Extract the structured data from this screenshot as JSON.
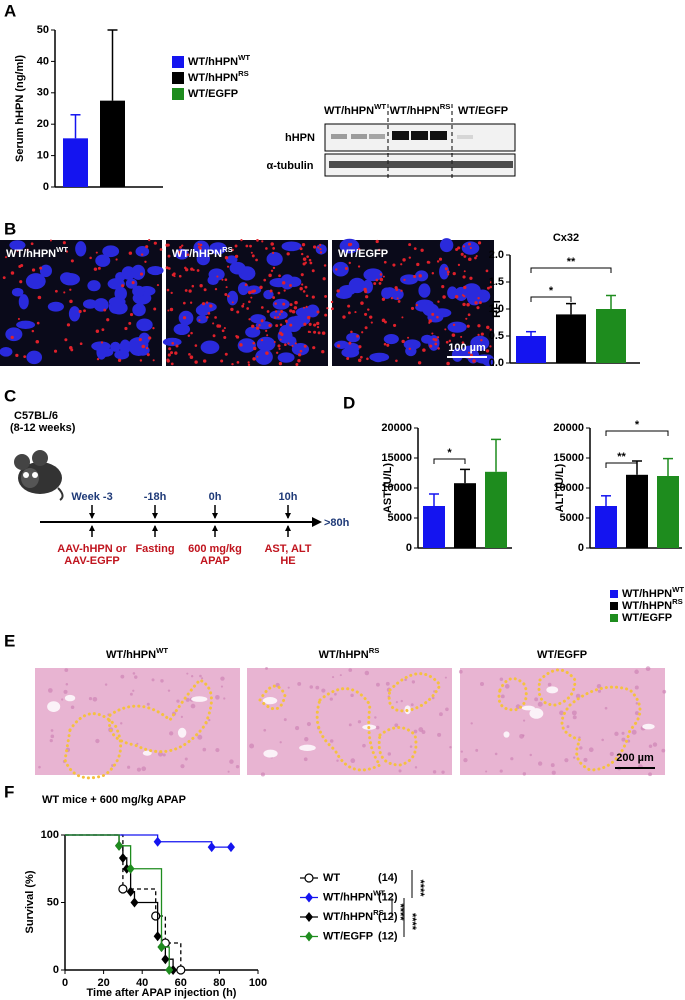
{
  "panels": [
    "A",
    "B",
    "C",
    "D",
    "E",
    "F"
  ],
  "blot": {
    "columns": [
      {
        "name": "WT/hHPN",
        "name_sup": "WT"
      },
      {
        "name": "WT/hHPN",
        "name_sup": "RS"
      },
      {
        "name": "WT/EGFP"
      }
    ],
    "rows": [
      "hHPN",
      "α-tubulin"
    ]
  },
  "microscopy": {
    "labels": [
      {
        "name": "WT/hHPN",
        "name_sup": "WT"
      },
      {
        "name": "WT/hHPN",
        "name_sup": "RS"
      },
      {
        "name": "WT/EGFP"
      }
    ],
    "scale_bar": "100 µm"
  },
  "timeline": {
    "strain": "C57BL/6",
    "age": "(8-12 weeks)",
    "points": [
      {
        "time": "Week -3",
        "event": [
          "AAV-hHPN or",
          "AAV-EGFP"
        ]
      },
      {
        "time": "-18h",
        "event": [
          "Fasting"
        ]
      },
      {
        "time": "0h",
        "event": [
          "600 mg/kg",
          "APAP"
        ]
      },
      {
        "time": "10h",
        "event": [
          "AST, ALT",
          "HE"
        ]
      }
    ],
    "end": ">80h"
  },
  "histology": {
    "labels": [
      {
        "name": "WT/hHPN",
        "name_sup": "WT"
      },
      {
        "name": "WT/hHPN",
        "name_sup": "RS"
      },
      {
        "name": "WT/EGFP"
      }
    ],
    "scale_bar": "200 µm"
  },
  "chart_data": [
    {
      "type": "bar",
      "ylabel": "Serum hHPN (ng/ml)",
      "ylim": [
        0,
        50
      ],
      "yticks": [
        0,
        10,
        20,
        30,
        40,
        50
      ],
      "values": [
        15.5,
        27.5
      ],
      "errors": [
        7.5,
        22.5
      ],
      "legend": [
        {
          "name": "WT/hHPN",
          "name_sup": "WT",
          "color": "#1414f0"
        },
        {
          "name": "WT/hHPN",
          "name_sup": "RS",
          "color": "#000000"
        },
        {
          "name": "WT/EGFP",
          "color": "#1e8c1e"
        }
      ]
    },
    {
      "type": "bar",
      "title": "Cx32",
      "ylabel": "RFI",
      "ylim": [
        0,
        2
      ],
      "yticks": [
        {
          "value": 0,
          "label": "0.0"
        },
        0.5,
        {
          "value": 1,
          "label": "1.0"
        },
        1.5,
        {
          "value": 2,
          "label": "2.0"
        }
      ],
      "values": [
        0.5,
        0.9,
        1.0
      ],
      "errors": [
        0.08,
        0.2,
        0.25
      ],
      "colors": [
        "#1414f0",
        "#000000",
        "#1e8c1e"
      ],
      "annotations": [
        "*",
        "**"
      ]
    },
    {
      "type": "bar",
      "ylim": [
        0,
        20000
      ],
      "yticks": [
        0,
        5000,
        10000,
        15000,
        20000
      ],
      "panels": [
        {
          "ylabel": "AST (U/L)",
          "values": [
            7000,
            10800,
            12700
          ],
          "errors": [
            2000,
            2300,
            5400
          ],
          "annotations": [
            "*"
          ]
        },
        {
          "ylabel": "ALT (U/L)",
          "values": [
            7000,
            12200,
            12000
          ],
          "errors": [
            1700,
            2300,
            2900
          ],
          "annotations": [
            "**",
            "*"
          ]
        }
      ],
      "legend": [
        {
          "name": "WT/hHPN",
          "name_sup": "WT",
          "color": "#1414f0"
        },
        {
          "name": "WT/hHPN",
          "name_sup": "RS",
          "color": "#000000"
        },
        {
          "name": "WT/EGFP",
          "color": "#1e8c1e"
        }
      ]
    },
    {
      "type": "line",
      "title": "WT mice + 600 mg/kg APAP",
      "xlabel": "Time after APAP injection (h)",
      "ylabel": "Survival (%)",
      "xlim": [
        0,
        100
      ],
      "xticks": [
        0,
        20,
        40,
        60,
        80,
        100
      ],
      "ylim": [
        0,
        100
      ],
      "yticks": [
        0,
        50,
        100
      ],
      "series": [
        {
          "name": "WT",
          "n_label": "(14)",
          "color": "#000000",
          "marker": "circle",
          "dash": true,
          "x": [
            0,
            30,
            47,
            52,
            60
          ],
          "values": [
            100,
            60,
            40,
            20,
            0
          ]
        },
        {
          "name": "WT/hHPN",
          "name_sup": "WT",
          "n_label": "(12)",
          "color": "#1414f0",
          "marker": "diamond",
          "dash": false,
          "x": [
            0,
            48,
            76,
            86
          ],
          "values": [
            100,
            95,
            91,
            91
          ]
        },
        {
          "name": "WT/hHPN",
          "name_sup": "RS",
          "n_label": "(12)",
          "color": "#000000",
          "marker": "diamond",
          "dash": false,
          "x": [
            0,
            28,
            30,
            32,
            34,
            36,
            48,
            50,
            52,
            56
          ],
          "values": [
            100,
            92,
            83,
            75,
            58,
            50,
            25,
            17,
            8,
            0
          ]
        },
        {
          "name": "WT/EGFP",
          "n_label": "(12)",
          "color": "#1e8c1e",
          "marker": "diamond",
          "dash": false,
          "x": [
            0,
            28,
            34,
            50,
            54
          ],
          "values": [
            100,
            92,
            75,
            17,
            0
          ]
        }
      ],
      "annotations": [
        "****",
        "****",
        "****"
      ]
    }
  ]
}
